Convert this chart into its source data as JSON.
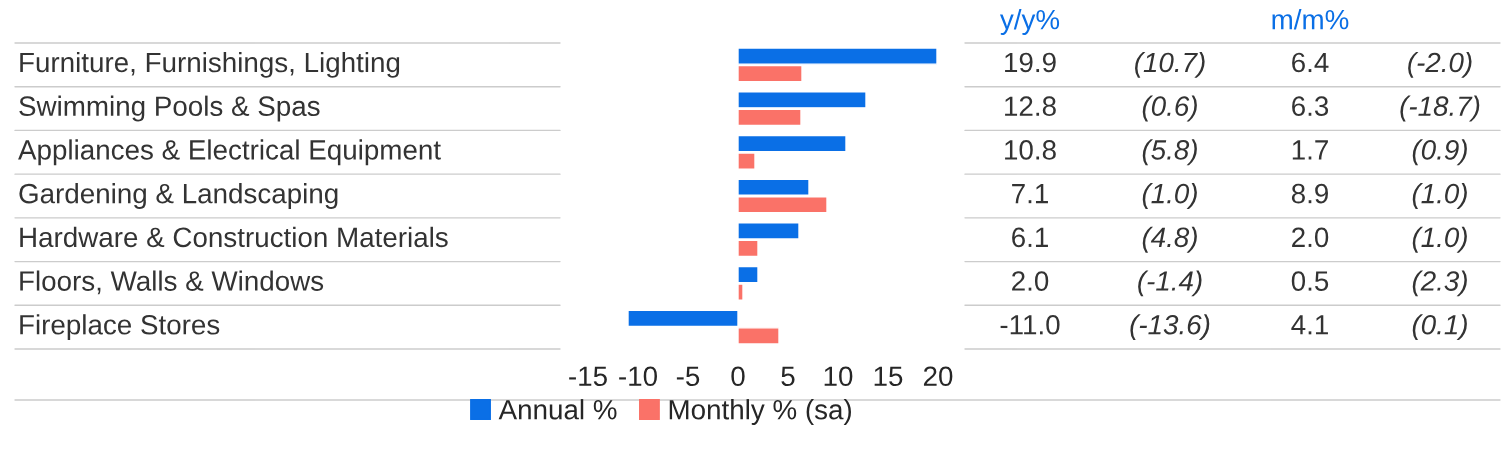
{
  "chart_data": {
    "type": "bar",
    "orientation": "horizontal",
    "categories": [
      "Furniture, Furnishings, Lighting",
      "Swimming Pools & Spas",
      "Appliances & Electrical Equipment",
      "Gardening & Landscaping",
      "Hardware & Construction Materials",
      "Floors, Walls & Windows",
      "Fireplace Stores"
    ],
    "series": [
      {
        "name": "Annual %",
        "color": "#0a6fe6",
        "values": [
          19.9,
          12.8,
          10.8,
          7.1,
          6.1,
          2.0,
          -11.0
        ],
        "value_labels": [
          "19.9",
          "12.8",
          "10.8",
          "7.1",
          "6.1",
          "2.0",
          "-11.0"
        ]
      },
      {
        "name": "Monthly % (sa)",
        "color": "#fa7268",
        "values": [
          6.4,
          6.3,
          1.7,
          8.9,
          2.0,
          0.5,
          4.1
        ],
        "value_labels": [
          "6.4",
          "6.3",
          "1.7",
          "8.9",
          "2.0",
          "0.5",
          "4.1"
        ]
      }
    ],
    "annotations": [
      "y/y%",
      "m/m%",
      "(10.7)",
      "(-2.0)",
      "(0.6)",
      "(-18.7)",
      "(5.8)",
      "(0.9)",
      "(1.0)",
      "(1.0)",
      "(4.8)",
      "(1.0)",
      "(-1.4)",
      "(2.3)",
      "(-13.6)",
      "(0.1)"
    ],
    "xlim": [
      -15,
      20
    ],
    "xticks": [
      -15,
      -10,
      -5,
      0,
      5,
      10,
      15,
      20
    ],
    "legend": "bottom",
    "grid": false
  }
}
